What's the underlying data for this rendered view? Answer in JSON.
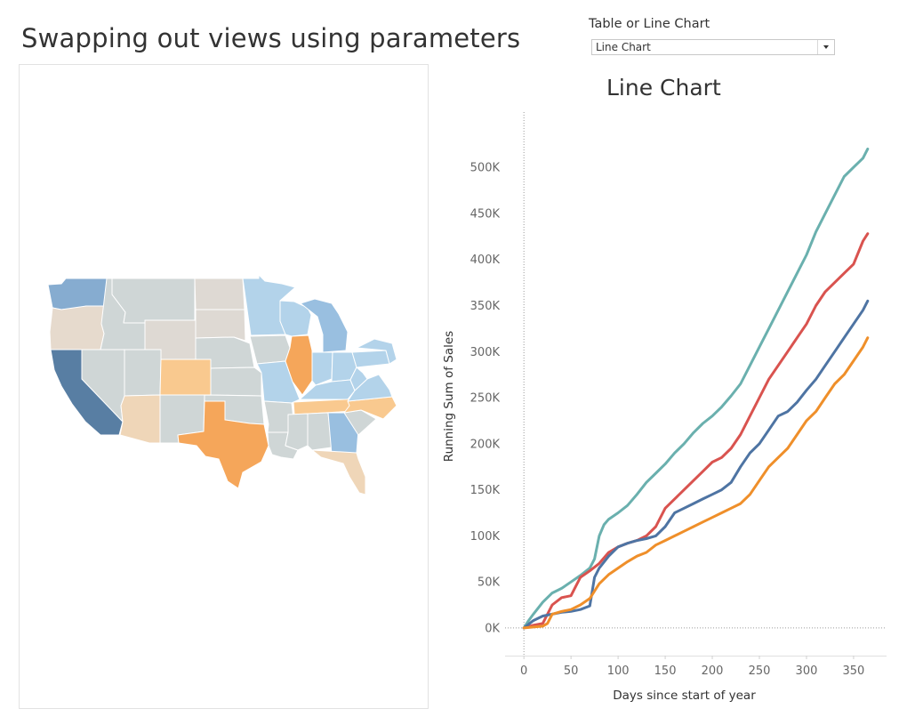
{
  "header": {
    "title": "Swapping out views using parameters"
  },
  "parameter": {
    "label": "Table or Line Chart",
    "selected": "Line Chart"
  },
  "map": {
    "states": [
      {
        "name": "WA",
        "color": "#86acd0"
      },
      {
        "name": "OR",
        "color": "#e6dacd"
      },
      {
        "name": "CA",
        "color": "#587ea3"
      },
      {
        "name": "NV",
        "color": "#cfd6d6"
      },
      {
        "name": "ID",
        "color": "#cfd6d6"
      },
      {
        "name": "MT",
        "color": "#cfd6d6"
      },
      {
        "name": "WY",
        "color": "#ded9d3"
      },
      {
        "name": "UT",
        "color": "#cfd6d6"
      },
      {
        "name": "AZ",
        "color": "#efd6b8"
      },
      {
        "name": "CO",
        "color": "#f9c98f"
      },
      {
        "name": "NM",
        "color": "#cfd6d6"
      },
      {
        "name": "ND",
        "color": "#ded9d3"
      },
      {
        "name": "SD",
        "color": "#ded9d3"
      },
      {
        "name": "NE",
        "color": "#cfd6d6"
      },
      {
        "name": "KS",
        "color": "#cfd6d6"
      },
      {
        "name": "OK",
        "color": "#cfd6d6"
      },
      {
        "name": "TX",
        "color": "#f5a65a"
      },
      {
        "name": "MN",
        "color": "#b3d3ea"
      },
      {
        "name": "IA",
        "color": "#cfd6d6"
      },
      {
        "name": "MO",
        "color": "#b3d3ea"
      },
      {
        "name": "AR",
        "color": "#cfd6d6"
      },
      {
        "name": "LA",
        "color": "#cfd6d6"
      },
      {
        "name": "WI",
        "color": "#b3d3ea"
      },
      {
        "name": "IL",
        "color": "#f5a65a"
      },
      {
        "name": "MI",
        "color": "#99bfe0"
      },
      {
        "name": "IN",
        "color": "#b3d3ea"
      },
      {
        "name": "OH",
        "color": "#b3d3ea"
      },
      {
        "name": "KY",
        "color": "#b3d3ea"
      },
      {
        "name": "TN",
        "color": "#f9c98f"
      },
      {
        "name": "MS",
        "color": "#cfd6d6"
      },
      {
        "name": "AL",
        "color": "#cfd6d6"
      },
      {
        "name": "GA",
        "color": "#99bfe0"
      },
      {
        "name": "FL",
        "color": "#efd6b8"
      },
      {
        "name": "SC",
        "color": "#cfd6d6"
      },
      {
        "name": "NC",
        "color": "#f9c98f"
      },
      {
        "name": "VA",
        "color": "#b3d3ea"
      },
      {
        "name": "WV",
        "color": "#b3d3ea"
      },
      {
        "name": "PA",
        "color": "#b3d3ea"
      },
      {
        "name": "NY",
        "color": "#b3d3ea"
      }
    ]
  },
  "chart_data": {
    "type": "line",
    "title": "Line Chart",
    "xlabel": "Days since start of year",
    "ylabel": "Running Sum of Sales",
    "xlim": [
      -20,
      385
    ],
    "ylim": [
      -30000,
      560000
    ],
    "x_ticks": [
      0,
      50,
      100,
      150,
      200,
      250,
      300,
      350
    ],
    "y_ticks": [
      0,
      50000,
      100000,
      150000,
      200000,
      250000,
      300000,
      350000,
      400000,
      450000,
      500000
    ],
    "y_tick_labels": [
      "0K",
      "50K",
      "100K",
      "150K",
      "200K",
      "250K",
      "300K",
      "350K",
      "400K",
      "450K",
      "500K"
    ],
    "grid": false,
    "series": [
      {
        "color": "#6ab0ae",
        "points": [
          [
            0,
            0
          ],
          [
            5,
            8000
          ],
          [
            10,
            15000
          ],
          [
            20,
            28000
          ],
          [
            30,
            38000
          ],
          [
            40,
            43000
          ],
          [
            50,
            50000
          ],
          [
            60,
            57000
          ],
          [
            70,
            65000
          ],
          [
            75,
            75000
          ],
          [
            80,
            100000
          ],
          [
            85,
            112000
          ],
          [
            90,
            118000
          ],
          [
            100,
            125000
          ],
          [
            110,
            133000
          ],
          [
            120,
            145000
          ],
          [
            130,
            158000
          ],
          [
            140,
            168000
          ],
          [
            150,
            178000
          ],
          [
            160,
            190000
          ],
          [
            170,
            200000
          ],
          [
            180,
            212000
          ],
          [
            190,
            222000
          ],
          [
            200,
            230000
          ],
          [
            210,
            240000
          ],
          [
            220,
            252000
          ],
          [
            230,
            265000
          ],
          [
            240,
            285000
          ],
          [
            250,
            305000
          ],
          [
            260,
            325000
          ],
          [
            270,
            345000
          ],
          [
            280,
            365000
          ],
          [
            290,
            385000
          ],
          [
            300,
            405000
          ],
          [
            310,
            430000
          ],
          [
            320,
            450000
          ],
          [
            330,
            470000
          ],
          [
            340,
            490000
          ],
          [
            350,
            500000
          ],
          [
            360,
            510000
          ],
          [
            365,
            520000
          ]
        ]
      },
      {
        "color": "#d9534f",
        "points": [
          [
            0,
            0
          ],
          [
            10,
            3000
          ],
          [
            20,
            5000
          ],
          [
            30,
            25000
          ],
          [
            40,
            33000
          ],
          [
            50,
            35000
          ],
          [
            55,
            45000
          ],
          [
            60,
            55000
          ],
          [
            70,
            62000
          ],
          [
            80,
            70000
          ],
          [
            90,
            82000
          ],
          [
            100,
            88000
          ],
          [
            110,
            92000
          ],
          [
            120,
            95000
          ],
          [
            130,
            100000
          ],
          [
            140,
            110000
          ],
          [
            150,
            130000
          ],
          [
            160,
            140000
          ],
          [
            170,
            150000
          ],
          [
            180,
            160000
          ],
          [
            190,
            170000
          ],
          [
            200,
            180000
          ],
          [
            210,
            185000
          ],
          [
            220,
            195000
          ],
          [
            230,
            210000
          ],
          [
            240,
            230000
          ],
          [
            250,
            250000
          ],
          [
            260,
            270000
          ],
          [
            270,
            285000
          ],
          [
            280,
            300000
          ],
          [
            290,
            315000
          ],
          [
            300,
            330000
          ],
          [
            310,
            350000
          ],
          [
            320,
            365000
          ],
          [
            330,
            375000
          ],
          [
            340,
            385000
          ],
          [
            350,
            395000
          ],
          [
            360,
            420000
          ],
          [
            365,
            428000
          ]
        ]
      },
      {
        "color": "#4e74a3",
        "points": [
          [
            0,
            0
          ],
          [
            10,
            8000
          ],
          [
            20,
            13000
          ],
          [
            30,
            15000
          ],
          [
            40,
            17000
          ],
          [
            50,
            18000
          ],
          [
            60,
            20000
          ],
          [
            70,
            24000
          ],
          [
            75,
            55000
          ],
          [
            80,
            65000
          ],
          [
            90,
            78000
          ],
          [
            100,
            88000
          ],
          [
            110,
            92000
          ],
          [
            120,
            95000
          ],
          [
            130,
            97000
          ],
          [
            140,
            100000
          ],
          [
            150,
            110000
          ],
          [
            160,
            125000
          ],
          [
            170,
            130000
          ],
          [
            180,
            135000
          ],
          [
            190,
            140000
          ],
          [
            200,
            145000
          ],
          [
            210,
            150000
          ],
          [
            220,
            158000
          ],
          [
            230,
            175000
          ],
          [
            240,
            190000
          ],
          [
            250,
            200000
          ],
          [
            260,
            215000
          ],
          [
            270,
            230000
          ],
          [
            280,
            235000
          ],
          [
            290,
            245000
          ],
          [
            300,
            258000
          ],
          [
            310,
            270000
          ],
          [
            320,
            285000
          ],
          [
            330,
            300000
          ],
          [
            340,
            315000
          ],
          [
            350,
            330000
          ],
          [
            360,
            345000
          ],
          [
            365,
            355000
          ]
        ]
      },
      {
        "color": "#ef8f2a",
        "points": [
          [
            0,
            0
          ],
          [
            10,
            1000
          ],
          [
            20,
            2000
          ],
          [
            25,
            5000
          ],
          [
            30,
            15000
          ],
          [
            40,
            18000
          ],
          [
            50,
            20000
          ],
          [
            60,
            25000
          ],
          [
            70,
            32000
          ],
          [
            75,
            40000
          ],
          [
            80,
            48000
          ],
          [
            90,
            58000
          ],
          [
            100,
            65000
          ],
          [
            110,
            72000
          ],
          [
            120,
            78000
          ],
          [
            130,
            82000
          ],
          [
            140,
            90000
          ],
          [
            150,
            95000
          ],
          [
            160,
            100000
          ],
          [
            170,
            105000
          ],
          [
            180,
            110000
          ],
          [
            190,
            115000
          ],
          [
            200,
            120000
          ],
          [
            210,
            125000
          ],
          [
            220,
            130000
          ],
          [
            230,
            135000
          ],
          [
            240,
            145000
          ],
          [
            250,
            160000
          ],
          [
            260,
            175000
          ],
          [
            270,
            185000
          ],
          [
            280,
            195000
          ],
          [
            290,
            210000
          ],
          [
            300,
            225000
          ],
          [
            310,
            235000
          ],
          [
            320,
            250000
          ],
          [
            330,
            265000
          ],
          [
            340,
            275000
          ],
          [
            350,
            290000
          ],
          [
            360,
            305000
          ],
          [
            365,
            315000
          ]
        ]
      }
    ]
  }
}
